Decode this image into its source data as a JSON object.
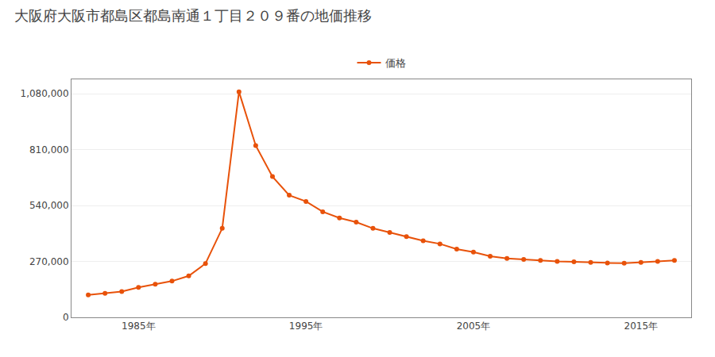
{
  "chart_data": {
    "type": "line",
    "title": "大阪府大阪市都島区都島南通１丁目２０９番の地価推移",
    "x": [
      1982,
      1983,
      1984,
      1985,
      1986,
      1987,
      1988,
      1989,
      1990,
      1991,
      1992,
      1993,
      1994,
      1995,
      1996,
      1997,
      1998,
      1999,
      2000,
      2001,
      2002,
      2003,
      2004,
      2005,
      2006,
      2007,
      2008,
      2009,
      2010,
      2011,
      2012,
      2013,
      2014,
      2015,
      2016,
      2017
    ],
    "series": [
      {
        "name": "価格",
        "color": "#e8520a",
        "values": [
          108000,
          116000,
          125000,
          145000,
          160000,
          175000,
          200000,
          260000,
          430000,
          1090000,
          830000,
          680000,
          590000,
          560000,
          510000,
          480000,
          460000,
          430000,
          410000,
          390000,
          370000,
          355000,
          330000,
          315000,
          295000,
          285000,
          280000,
          275000,
          270000,
          268000,
          265000,
          263000,
          262000,
          265000,
          270000,
          275000
        ]
      }
    ],
    "xlim": [
      1981,
      2018
    ],
    "xticks": [
      {
        "value": 1985,
        "label": "1985年"
      },
      {
        "value": 1995,
        "label": "1995年"
      },
      {
        "value": 2005,
        "label": "2005年"
      },
      {
        "value": 2015,
        "label": "2015年"
      }
    ],
    "ylim": [
      0,
      1150000
    ],
    "yticks": [
      0,
      {
        "value": 270000,
        "label": "270,000"
      },
      {
        "value": 540000,
        "label": "540,000"
      },
      {
        "value": 810000,
        "label": "810,000"
      },
      {
        "value": 1080000,
        "label": "1,080,000"
      }
    ],
    "grid": true,
    "legend": "top",
    "marker": "circle"
  }
}
